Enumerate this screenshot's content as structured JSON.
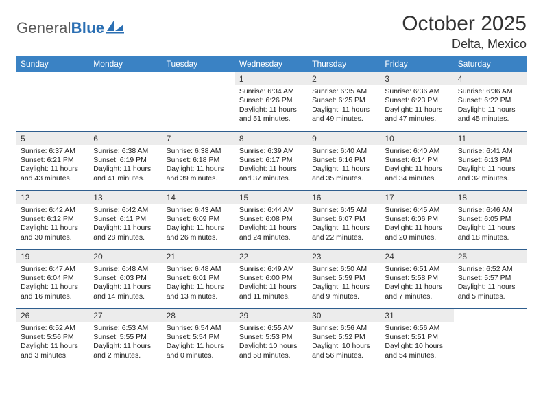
{
  "brand": {
    "word1": "General",
    "word2": "Blue",
    "mark_color": "#2b6fb3"
  },
  "title": "October 2025",
  "location": "Delta, Mexico",
  "colors": {
    "header_bg": "#3a82c4",
    "header_text": "#ffffff",
    "week_divider": "#2f5e8e",
    "daynum_bg": "#ececec",
    "text": "#333333"
  },
  "day_labels": [
    "Sunday",
    "Monday",
    "Tuesday",
    "Wednesday",
    "Thursday",
    "Friday",
    "Saturday"
  ],
  "weeks": [
    [
      {
        "n": "",
        "sr": "",
        "ss": "",
        "dl": ""
      },
      {
        "n": "",
        "sr": "",
        "ss": "",
        "dl": ""
      },
      {
        "n": "",
        "sr": "",
        "ss": "",
        "dl": ""
      },
      {
        "n": "1",
        "sr": "Sunrise: 6:34 AM",
        "ss": "Sunset: 6:26 PM",
        "dl": "Daylight: 11 hours and 51 minutes."
      },
      {
        "n": "2",
        "sr": "Sunrise: 6:35 AM",
        "ss": "Sunset: 6:25 PM",
        "dl": "Daylight: 11 hours and 49 minutes."
      },
      {
        "n": "3",
        "sr": "Sunrise: 6:36 AM",
        "ss": "Sunset: 6:23 PM",
        "dl": "Daylight: 11 hours and 47 minutes."
      },
      {
        "n": "4",
        "sr": "Sunrise: 6:36 AM",
        "ss": "Sunset: 6:22 PM",
        "dl": "Daylight: 11 hours and 45 minutes."
      }
    ],
    [
      {
        "n": "5",
        "sr": "Sunrise: 6:37 AM",
        "ss": "Sunset: 6:21 PM",
        "dl": "Daylight: 11 hours and 43 minutes."
      },
      {
        "n": "6",
        "sr": "Sunrise: 6:38 AM",
        "ss": "Sunset: 6:19 PM",
        "dl": "Daylight: 11 hours and 41 minutes."
      },
      {
        "n": "7",
        "sr": "Sunrise: 6:38 AM",
        "ss": "Sunset: 6:18 PM",
        "dl": "Daylight: 11 hours and 39 minutes."
      },
      {
        "n": "8",
        "sr": "Sunrise: 6:39 AM",
        "ss": "Sunset: 6:17 PM",
        "dl": "Daylight: 11 hours and 37 minutes."
      },
      {
        "n": "9",
        "sr": "Sunrise: 6:40 AM",
        "ss": "Sunset: 6:16 PM",
        "dl": "Daylight: 11 hours and 35 minutes."
      },
      {
        "n": "10",
        "sr": "Sunrise: 6:40 AM",
        "ss": "Sunset: 6:14 PM",
        "dl": "Daylight: 11 hours and 34 minutes."
      },
      {
        "n": "11",
        "sr": "Sunrise: 6:41 AM",
        "ss": "Sunset: 6:13 PM",
        "dl": "Daylight: 11 hours and 32 minutes."
      }
    ],
    [
      {
        "n": "12",
        "sr": "Sunrise: 6:42 AM",
        "ss": "Sunset: 6:12 PM",
        "dl": "Daylight: 11 hours and 30 minutes."
      },
      {
        "n": "13",
        "sr": "Sunrise: 6:42 AM",
        "ss": "Sunset: 6:11 PM",
        "dl": "Daylight: 11 hours and 28 minutes."
      },
      {
        "n": "14",
        "sr": "Sunrise: 6:43 AM",
        "ss": "Sunset: 6:09 PM",
        "dl": "Daylight: 11 hours and 26 minutes."
      },
      {
        "n": "15",
        "sr": "Sunrise: 6:44 AM",
        "ss": "Sunset: 6:08 PM",
        "dl": "Daylight: 11 hours and 24 minutes."
      },
      {
        "n": "16",
        "sr": "Sunrise: 6:45 AM",
        "ss": "Sunset: 6:07 PM",
        "dl": "Daylight: 11 hours and 22 minutes."
      },
      {
        "n": "17",
        "sr": "Sunrise: 6:45 AM",
        "ss": "Sunset: 6:06 PM",
        "dl": "Daylight: 11 hours and 20 minutes."
      },
      {
        "n": "18",
        "sr": "Sunrise: 6:46 AM",
        "ss": "Sunset: 6:05 PM",
        "dl": "Daylight: 11 hours and 18 minutes."
      }
    ],
    [
      {
        "n": "19",
        "sr": "Sunrise: 6:47 AM",
        "ss": "Sunset: 6:04 PM",
        "dl": "Daylight: 11 hours and 16 minutes."
      },
      {
        "n": "20",
        "sr": "Sunrise: 6:48 AM",
        "ss": "Sunset: 6:03 PM",
        "dl": "Daylight: 11 hours and 14 minutes."
      },
      {
        "n": "21",
        "sr": "Sunrise: 6:48 AM",
        "ss": "Sunset: 6:01 PM",
        "dl": "Daylight: 11 hours and 13 minutes."
      },
      {
        "n": "22",
        "sr": "Sunrise: 6:49 AM",
        "ss": "Sunset: 6:00 PM",
        "dl": "Daylight: 11 hours and 11 minutes."
      },
      {
        "n": "23",
        "sr": "Sunrise: 6:50 AM",
        "ss": "Sunset: 5:59 PM",
        "dl": "Daylight: 11 hours and 9 minutes."
      },
      {
        "n": "24",
        "sr": "Sunrise: 6:51 AM",
        "ss": "Sunset: 5:58 PM",
        "dl": "Daylight: 11 hours and 7 minutes."
      },
      {
        "n": "25",
        "sr": "Sunrise: 6:52 AM",
        "ss": "Sunset: 5:57 PM",
        "dl": "Daylight: 11 hours and 5 minutes."
      }
    ],
    [
      {
        "n": "26",
        "sr": "Sunrise: 6:52 AM",
        "ss": "Sunset: 5:56 PM",
        "dl": "Daylight: 11 hours and 3 minutes."
      },
      {
        "n": "27",
        "sr": "Sunrise: 6:53 AM",
        "ss": "Sunset: 5:55 PM",
        "dl": "Daylight: 11 hours and 2 minutes."
      },
      {
        "n": "28",
        "sr": "Sunrise: 6:54 AM",
        "ss": "Sunset: 5:54 PM",
        "dl": "Daylight: 11 hours and 0 minutes."
      },
      {
        "n": "29",
        "sr": "Sunrise: 6:55 AM",
        "ss": "Sunset: 5:53 PM",
        "dl": "Daylight: 10 hours and 58 minutes."
      },
      {
        "n": "30",
        "sr": "Sunrise: 6:56 AM",
        "ss": "Sunset: 5:52 PM",
        "dl": "Daylight: 10 hours and 56 minutes."
      },
      {
        "n": "31",
        "sr": "Sunrise: 6:56 AM",
        "ss": "Sunset: 5:51 PM",
        "dl": "Daylight: 10 hours and 54 minutes."
      },
      {
        "n": "",
        "sr": "",
        "ss": "",
        "dl": ""
      }
    ]
  ]
}
